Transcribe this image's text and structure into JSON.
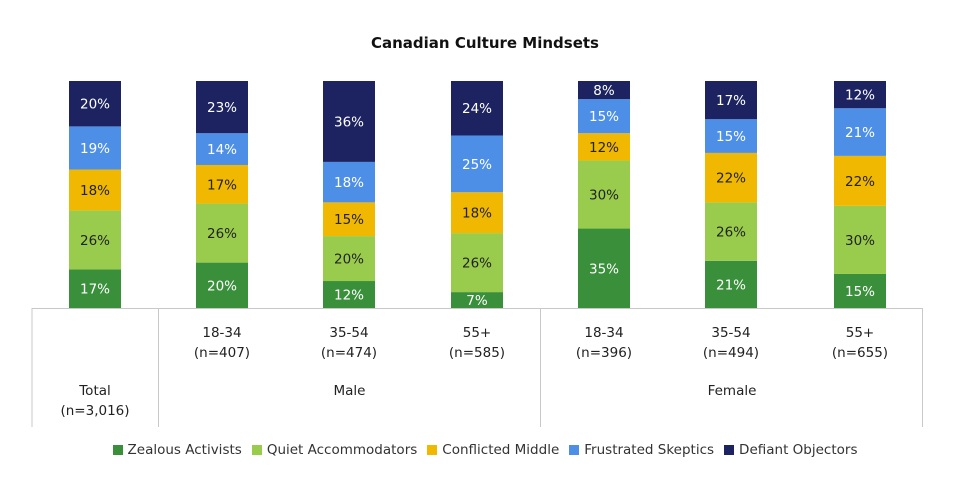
{
  "chart_data": {
    "type": "bar",
    "stacked": true,
    "normalized": true,
    "title": "Canadian Culture Mindsets",
    "categories": [
      {
        "label": "Total",
        "n": "(n=3,016)",
        "group": ""
      },
      {
        "label": "18-34",
        "n": "(n=407)",
        "group": "Male"
      },
      {
        "label": "35-54",
        "n": "(n=474)",
        "group": "Male"
      },
      {
        "label": "55+",
        "n": "(n=585)",
        "group": "Male"
      },
      {
        "label": "18-34",
        "n": "(n=396)",
        "group": "Female"
      },
      {
        "label": "35-54",
        "n": "(n=494)",
        "group": "Female"
      },
      {
        "label": "55+",
        "n": "(n=655)",
        "group": "Female"
      }
    ],
    "groups": [
      "Male",
      "Female"
    ],
    "series": [
      {
        "name": "Zealous Activists",
        "color": "#3a8f3b",
        "values": [
          17,
          20,
          12,
          7,
          35,
          21,
          15
        ]
      },
      {
        "name": "Quiet Accommodators",
        "color": "#99cc4c",
        "values": [
          26,
          26,
          20,
          26,
          30,
          26,
          30
        ]
      },
      {
        "name": "Conflicted Middle",
        "color": "#f0b800",
        "values": [
          18,
          17,
          15,
          18,
          12,
          22,
          22
        ]
      },
      {
        "name": "Frustrated Skeptics",
        "color": "#4d8fe6",
        "values": [
          19,
          14,
          18,
          25,
          15,
          15,
          21
        ]
      },
      {
        "name": "Defiant Objectors",
        "color": "#1c2360",
        "values": [
          20,
          23,
          36,
          24,
          8,
          17,
          12
        ]
      }
    ],
    "value_suffix": "%",
    "legend_position": "bottom"
  }
}
